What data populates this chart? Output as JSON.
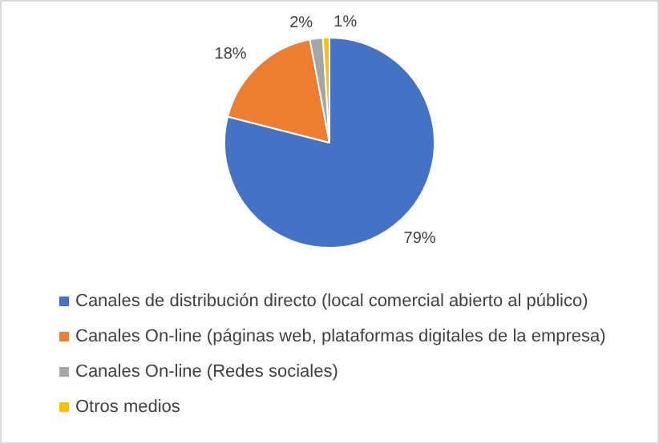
{
  "chart_data": {
    "type": "pie",
    "categories": [
      "Canales de distribución directo (local comercial abierto al público)",
      "Canales On-line (páginas web, plataformas digitales de la empresa)",
      "Canales On-line (Redes sociales)",
      "Otros medios"
    ],
    "values": [
      79,
      18,
      2,
      1
    ],
    "colors": [
      "#4472c4",
      "#ed7d31",
      "#a5a5a5",
      "#ffc000"
    ],
    "value_labels": [
      "79%",
      "18%",
      "2%",
      "1%"
    ],
    "legend": "bottom"
  }
}
